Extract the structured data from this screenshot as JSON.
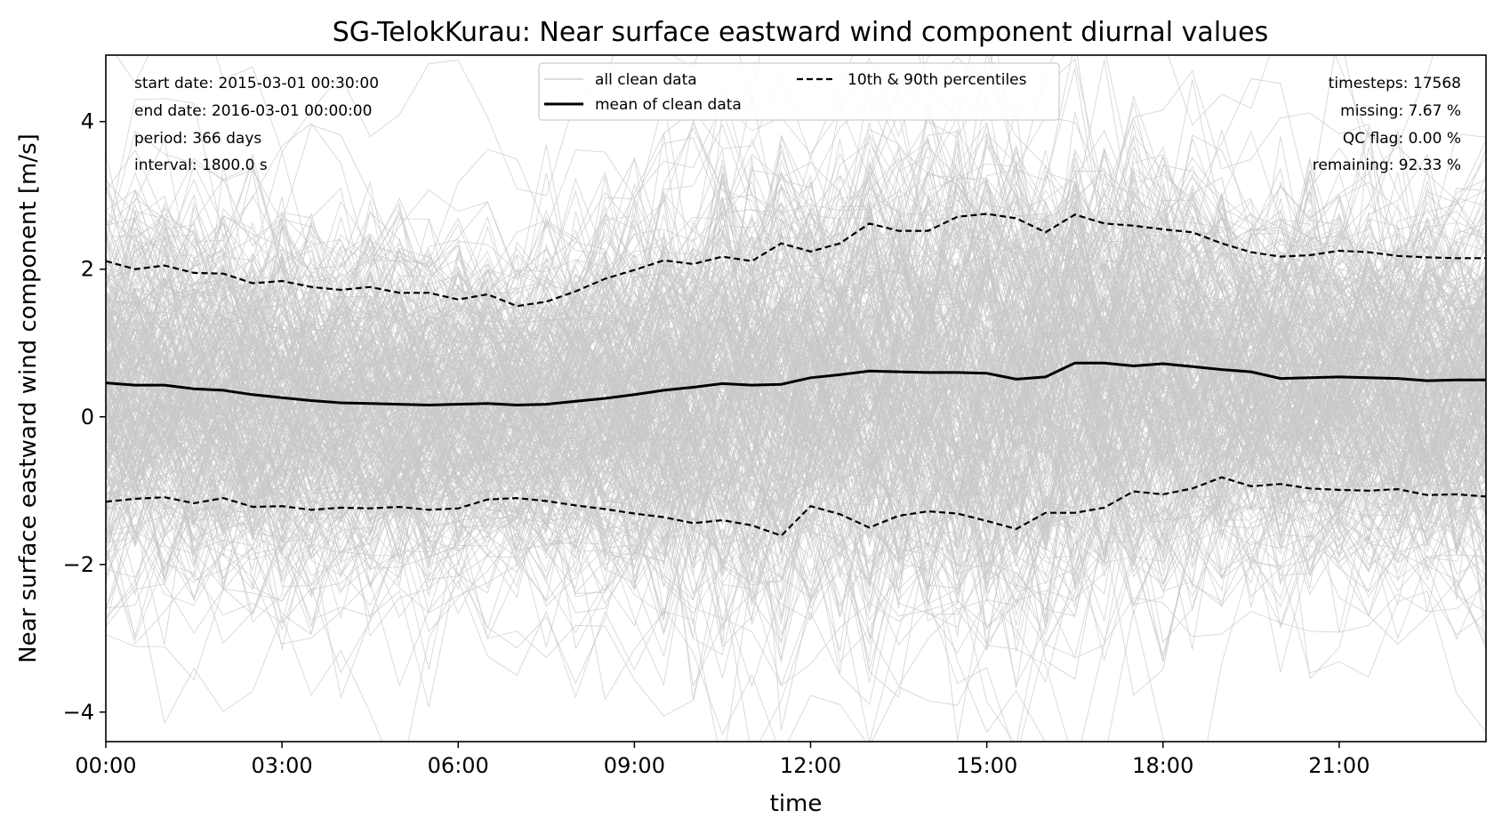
{
  "chart_data": {
    "type": "line",
    "title": "SG-TelokKurau: Near surface eastward wind component diurnal values",
    "xlabel": "time",
    "ylabel": "Near surface eastward wind component [m/s]",
    "xlim_hours": [
      0,
      23.5
    ],
    "ylim": [
      -4.4,
      4.9
    ],
    "x_ticks": [
      {
        "value": 0,
        "label": "00:00"
      },
      {
        "value": 3,
        "label": "03:00"
      },
      {
        "value": 6,
        "label": "06:00"
      },
      {
        "value": 9,
        "label": "09:00"
      },
      {
        "value": 12,
        "label": "12:00"
      },
      {
        "value": 15,
        "label": "15:00"
      },
      {
        "value": 18,
        "label": "18:00"
      },
      {
        "value": 21,
        "label": "21:00"
      }
    ],
    "y_ticks": [
      {
        "value": 4,
        "label": "4"
      },
      {
        "value": 2,
        "label": "2"
      },
      {
        "value": 0,
        "label": "0"
      },
      {
        "value": -2,
        "label": "−2"
      },
      {
        "value": -4,
        "label": "−4"
      }
    ],
    "x": [
      0,
      0.5,
      1,
      1.5,
      2,
      2.5,
      3,
      3.5,
      4,
      4.5,
      5,
      5.5,
      6,
      6.5,
      7,
      7.5,
      8,
      8.5,
      9,
      9.5,
      10,
      10.5,
      11,
      11.5,
      12,
      12.5,
      13,
      13.5,
      14,
      14.5,
      15,
      15.5,
      16,
      16.5,
      17,
      17.5,
      18,
      18.5,
      19,
      19.5,
      20,
      20.5,
      21,
      21.5,
      22,
      22.5,
      23,
      23.5
    ],
    "series": [
      {
        "name": "mean of clean data",
        "style": "solid",
        "color": "#000000",
        "values": [
          0.46,
          0.43,
          0.43,
          0.38,
          0.36,
          0.3,
          0.26,
          0.22,
          0.19,
          0.18,
          0.17,
          0.16,
          0.17,
          0.18,
          0.16,
          0.17,
          0.21,
          0.25,
          0.3,
          0.36,
          0.4,
          0.45,
          0.43,
          0.44,
          0.53,
          0.57,
          0.62,
          0.61,
          0.6,
          0.6,
          0.59,
          0.51,
          0.54,
          0.73,
          0.73,
          0.69,
          0.72,
          0.68,
          0.64,
          0.61,
          0.52,
          0.53,
          0.54,
          0.53,
          0.52,
          0.49,
          0.5,
          0.5
        ]
      },
      {
        "name": "10th & 90th percentiles",
        "style": "dashed",
        "color": "#000000",
        "values": [
          2.11,
          2.0,
          2.05,
          1.95,
          1.94,
          1.81,
          1.84,
          1.76,
          1.72,
          1.76,
          1.68,
          1.68,
          1.59,
          1.66,
          1.5,
          1.56,
          1.7,
          1.87,
          1.99,
          2.12,
          2.07,
          2.17,
          2.11,
          2.35,
          2.24,
          2.35,
          2.62,
          2.52,
          2.52,
          2.71,
          2.75,
          2.69,
          2.5,
          2.74,
          2.62,
          2.59,
          2.54,
          2.5,
          2.35,
          2.23,
          2.17,
          2.19,
          2.25,
          2.23,
          2.18,
          2.16,
          2.15,
          2.15
        ]
      },
      {
        "name": "10th percentile",
        "style": "dashed",
        "color": "#000000",
        "values": [
          -1.15,
          -1.11,
          -1.09,
          -1.17,
          -1.1,
          -1.22,
          -1.21,
          -1.26,
          -1.23,
          -1.24,
          -1.22,
          -1.26,
          -1.24,
          -1.12,
          -1.1,
          -1.14,
          -1.2,
          -1.25,
          -1.31,
          -1.36,
          -1.44,
          -1.4,
          -1.47,
          -1.61,
          -1.21,
          -1.32,
          -1.5,
          -1.34,
          -1.28,
          -1.31,
          -1.41,
          -1.52,
          -1.3,
          -1.3,
          -1.23,
          -1.01,
          -1.05,
          -0.97,
          -0.82,
          -0.94,
          -0.91,
          -0.97,
          -0.99,
          -1.0,
          -0.98,
          -1.06,
          -1.05,
          -1.08
        ]
      }
    ],
    "background_lines": {
      "name": "all clean data",
      "color": "#c8c8c8",
      "count": 366
    },
    "legend": {
      "placement": "upper center",
      "entries": [
        {
          "label": "all clean data",
          "style": "thin-gray"
        },
        {
          "label": "mean of clean data",
          "style": "solid"
        },
        {
          "label": "10th & 90th percentiles",
          "style": "dashed"
        }
      ]
    },
    "info_left": [
      "start date: 2015-03-01 00:30:00",
      "end date: 2016-03-01 00:00:00",
      "period: 366 days",
      "interval: 1800.0 s"
    ],
    "info_right": [
      "timesteps: 17568",
      "missing: 7.67 %",
      "QC flag: 0.00 %",
      "remaining: 92.33 %"
    ],
    "grid": false
  }
}
